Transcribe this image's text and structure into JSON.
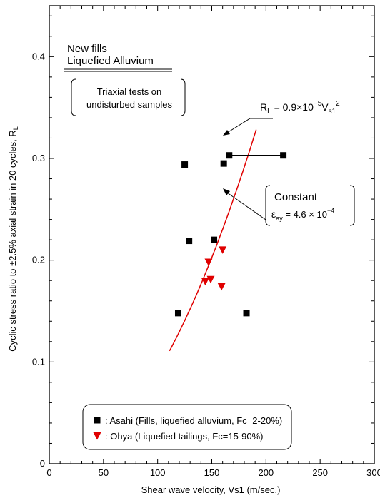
{
  "chart_data": {
    "type": "scatter",
    "xlabel": "Shear wave velocity, Vs1 (m/sec.)",
    "ylabel": "Cyclic stress ratio to ±2.5% axial strain in 20 cycles, R",
    "ylabel_sub": "L",
    "xlim": [
      0,
      300
    ],
    "ylim": [
      0,
      0.45
    ],
    "x_ticks": [
      0,
      50,
      100,
      150,
      200,
      250,
      300
    ],
    "x_tick_labels": [
      "0",
      "50",
      "100",
      "150",
      "200",
      "250",
      "300"
    ],
    "y_ticks": [
      0,
      0.1,
      0.2,
      0.3,
      0.4
    ],
    "y_tick_labels": [
      "0",
      "0.1",
      "0.2",
      "0.3",
      "0.4"
    ],
    "grid": false,
    "series": [
      {
        "name": ": Asahi (Fills, liquefied alluvium, Fc=2-20%)",
        "marker": "square",
        "color": "#000000",
        "x": [
          119,
          125,
          129,
          152,
          161,
          166,
          182,
          216
        ],
        "y": [
          0.148,
          0.294,
          0.219,
          0.22,
          0.295,
          0.303,
          0.148,
          0.303
        ]
      },
      {
        "name": ": Ohya (Liquefied tailings, Fc=15-90%)",
        "marker": "triangle-down",
        "color": "#e00000",
        "x": [
          144,
          147,
          149,
          159,
          160
        ],
        "y": [
          0.179,
          0.198,
          0.181,
          0.174,
          0.21
        ]
      }
    ],
    "range_bar": {
      "x": [
        166,
        216
      ],
      "y": 0.303
    },
    "curve": {
      "name": "R_L = 0.9×10^-5 Vs1^2",
      "color": "#e00000",
      "coefficient": 9e-06,
      "exponent": 2,
      "x_range": [
        111,
        191
      ]
    },
    "annotations": {
      "title_line1": "New fills",
      "title_line2": "Liquefied Alluvium",
      "box_line1": "Triaxial tests on",
      "box_line2": "undisturbed samples",
      "eq_R": "R",
      "eq_L": "L",
      "eq_mid": " = 0.9×10",
      "eq_exp": "−5",
      "eq_V": "V",
      "eq_s1": "s1",
      "eq_pow": "2",
      "constant_line1": "Constant",
      "constant_eps": "ε",
      "constant_ay": "ay",
      "constant_mid": " = 4.6 × 10",
      "constant_exp": "−4"
    }
  }
}
